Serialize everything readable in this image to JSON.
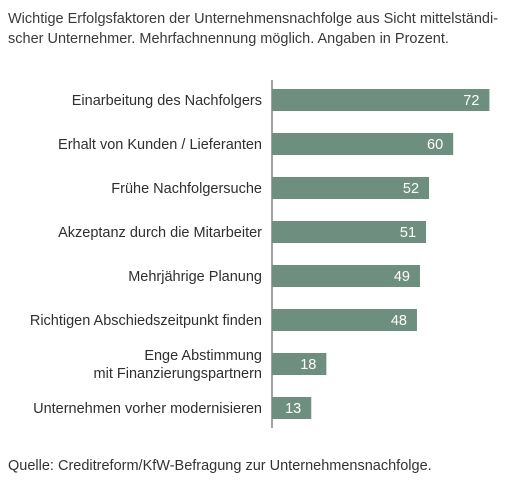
{
  "chart_data": {
    "type": "bar",
    "orientation": "horizontal",
    "title": "Wichtige Erfolgsfaktoren der Unternehmensnachfolge aus Sicht mittelständi-scher Unternehmer. Mehrfachnennung möglich. Angaben in Prozent.",
    "categories": [
      "Einarbeitung des Nachfolgers",
      "Erhalt von Kunden / Lieferanten",
      "Frühe Nachfolgersuche",
      "Akzeptanz durch die Mitarbeiter",
      "Mehrjährige Planung",
      "Richtigen Abschiedszeitpunkt finden",
      "Enge Abstimmung\nmit Finanzierungspartnern",
      "Unternehmen vorher modernisieren"
    ],
    "values": [
      72,
      60,
      52,
      51,
      49,
      48,
      18,
      13
    ],
    "data_labels": [
      "72",
      "60",
      "52",
      "51",
      "49",
      "48",
      "18",
      "13"
    ],
    "xlim": [
      0,
      100
    ],
    "grid": false,
    "bar_color": "#6e8f80"
  },
  "source": "Quelle: Creditreform/KfW-Befragung zur Unternehmensnachfolge."
}
